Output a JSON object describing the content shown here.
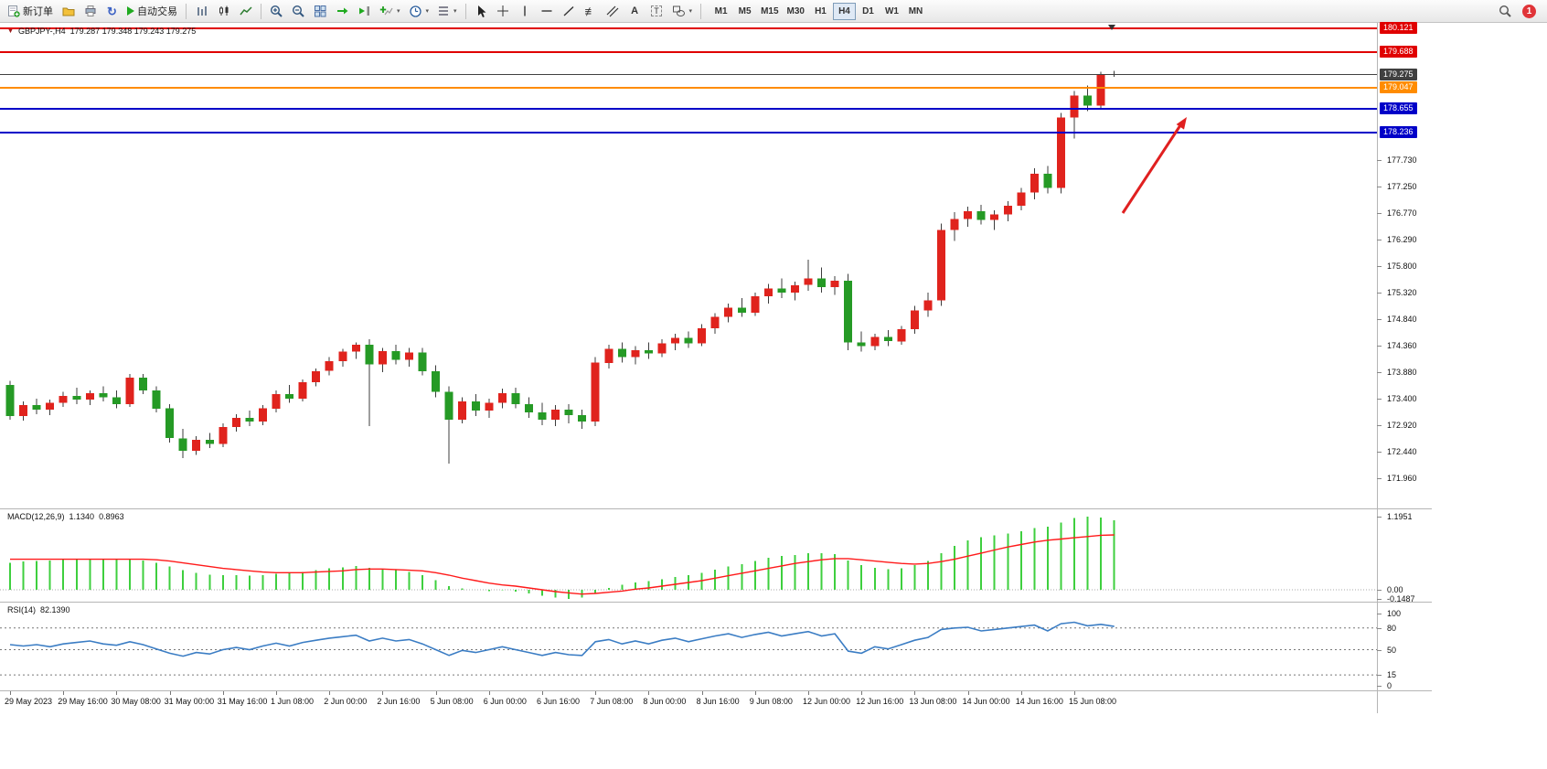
{
  "toolbar": {
    "new_order_label": "新订单",
    "auto_trading_label": "自动交易",
    "timeframes": [
      "M1",
      "M5",
      "M15",
      "M30",
      "H1",
      "H4",
      "D1",
      "W1",
      "MN"
    ],
    "active_timeframe": "H4",
    "notification_count": "1"
  },
  "chart": {
    "symbol_title": "GBPJPY-,H4",
    "ohlc_text": "179.287 179.348 179.243 179.275",
    "macd": {
      "title": "MACD(12,26,9)",
      "value_main": "1.1340",
      "value_signal": "0.8963"
    },
    "rsi": {
      "title": "RSI(14)",
      "value": "82.1390"
    }
  },
  "chart_data": {
    "type": "candlestick",
    "symbol": "GBPJPY",
    "timeframe": "H4",
    "title": "GBPJPY-,H4",
    "current_ohlc": {
      "open": 179.287,
      "high": 179.348,
      "low": 179.243,
      "close": 179.275
    },
    "ylim": [
      171.41,
      180.2
    ],
    "price_axis_labels": [
      "177.730",
      "177.250",
      "176.770",
      "176.290",
      "175.800",
      "175.320",
      "174.840",
      "174.360",
      "173.880",
      "173.400",
      "172.920",
      "172.440",
      "171.960"
    ],
    "x_labels": [
      "29 May 2023",
      "29 May 16:00",
      "30 May 08:00",
      "31 May 00:00",
      "31 May 16:00",
      "1 Jun 08:00",
      "2 Jun 00:00",
      "2 Jun 16:00",
      "5 Jun 08:00",
      "6 Jun 00:00",
      "6 Jun 16:00",
      "7 Jun 08:00",
      "8 Jun 00:00",
      "8 Jun 16:00",
      "9 Jun 08:00",
      "12 Jun 00:00",
      "12 Jun 16:00",
      "13 Jun 08:00",
      "14 Jun 00:00",
      "14 Jun 16:00",
      "15 Jun 08:00"
    ],
    "candles_per_label": 4,
    "ohlc": [
      [
        173.65,
        173.72,
        173.02,
        173.08
      ],
      [
        173.08,
        173.35,
        173.0,
        173.28
      ],
      [
        173.28,
        173.4,
        173.12,
        173.2
      ],
      [
        173.2,
        173.38,
        173.1,
        173.32
      ],
      [
        173.32,
        173.52,
        173.25,
        173.45
      ],
      [
        173.45,
        173.6,
        173.3,
        173.38
      ],
      [
        173.38,
        173.55,
        173.28,
        173.5
      ],
      [
        173.5,
        173.62,
        173.35,
        173.42
      ],
      [
        173.42,
        173.55,
        173.22,
        173.3
      ],
      [
        173.3,
        173.85,
        173.25,
        173.78
      ],
      [
        173.78,
        173.85,
        173.48,
        173.55
      ],
      [
        173.55,
        173.62,
        173.15,
        173.22
      ],
      [
        173.22,
        173.3,
        172.6,
        172.68
      ],
      [
        172.68,
        172.85,
        172.32,
        172.45
      ],
      [
        172.45,
        172.72,
        172.38,
        172.65
      ],
      [
        172.65,
        172.78,
        172.5,
        172.58
      ],
      [
        172.58,
        172.95,
        172.52,
        172.88
      ],
      [
        172.88,
        173.12,
        172.8,
        173.05
      ],
      [
        173.05,
        173.18,
        172.9,
        172.98
      ],
      [
        172.98,
        173.28,
        172.92,
        173.22
      ],
      [
        173.22,
        173.55,
        173.15,
        173.48
      ],
      [
        173.48,
        173.65,
        173.32,
        173.4
      ],
      [
        173.4,
        173.75,
        173.35,
        173.7
      ],
      [
        173.7,
        173.95,
        173.62,
        173.9
      ],
      [
        173.9,
        174.15,
        173.82,
        174.08
      ],
      [
        174.08,
        174.3,
        173.98,
        174.25
      ],
      [
        174.25,
        174.42,
        174.12,
        174.38
      ],
      [
        174.38,
        174.48,
        172.9,
        174.02
      ],
      [
        174.02,
        174.32,
        173.88,
        174.26
      ],
      [
        174.26,
        174.38,
        174.02,
        174.1
      ],
      [
        174.1,
        174.32,
        173.98,
        174.24
      ],
      [
        174.24,
        174.32,
        173.82,
        173.9
      ],
      [
        173.9,
        174.0,
        173.42,
        173.52
      ],
      [
        173.52,
        173.62,
        172.22,
        173.02
      ],
      [
        173.02,
        173.42,
        172.95,
        173.35
      ],
      [
        173.35,
        173.48,
        173.08,
        173.18
      ],
      [
        173.18,
        173.4,
        173.05,
        173.32
      ],
      [
        173.32,
        173.58,
        173.22,
        173.5
      ],
      [
        173.5,
        173.6,
        173.22,
        173.3
      ],
      [
        173.3,
        173.42,
        173.05,
        173.15
      ],
      [
        173.15,
        173.32,
        172.92,
        173.02
      ],
      [
        173.02,
        173.28,
        172.9,
        173.2
      ],
      [
        173.2,
        173.3,
        172.95,
        173.1
      ],
      [
        173.1,
        173.2,
        172.85,
        172.98
      ],
      [
        172.98,
        174.15,
        172.9,
        174.05
      ],
      [
        174.05,
        174.38,
        173.95,
        174.3
      ],
      [
        174.3,
        174.42,
        174.05,
        174.15
      ],
      [
        174.15,
        174.35,
        174.02,
        174.28
      ],
      [
        174.28,
        174.42,
        174.12,
        174.22
      ],
      [
        174.22,
        174.48,
        174.15,
        174.4
      ],
      [
        174.4,
        174.58,
        174.28,
        174.5
      ],
      [
        174.5,
        174.62,
        174.32,
        174.4
      ],
      [
        174.4,
        174.75,
        174.35,
        174.68
      ],
      [
        174.68,
        174.95,
        174.58,
        174.88
      ],
      [
        174.88,
        175.12,
        174.78,
        175.05
      ],
      [
        175.05,
        175.22,
        174.88,
        174.96
      ],
      [
        174.96,
        175.32,
        174.9,
        175.26
      ],
      [
        175.26,
        175.48,
        175.12,
        175.4
      ],
      [
        175.4,
        175.58,
        175.22,
        175.32
      ],
      [
        175.32,
        175.52,
        175.18,
        175.46
      ],
      [
        175.46,
        175.92,
        175.36,
        175.58
      ],
      [
        175.58,
        175.78,
        175.32,
        175.42
      ],
      [
        175.42,
        175.62,
        175.28,
        175.54
      ],
      [
        175.54,
        175.66,
        174.28,
        174.42
      ],
      [
        174.42,
        174.62,
        174.25,
        174.35
      ],
      [
        174.35,
        174.58,
        174.28,
        174.52
      ],
      [
        174.52,
        174.64,
        174.35,
        174.44
      ],
      [
        174.44,
        174.72,
        174.38,
        174.66
      ],
      [
        174.66,
        175.08,
        174.58,
        175.0
      ],
      [
        175.0,
        175.32,
        174.88,
        175.18
      ],
      [
        175.18,
        176.58,
        175.08,
        176.46
      ],
      [
        176.46,
        176.78,
        176.26,
        176.66
      ],
      [
        176.66,
        176.88,
        176.52,
        176.8
      ],
      [
        176.8,
        176.92,
        176.56,
        176.64
      ],
      [
        176.64,
        176.82,
        176.46,
        176.74
      ],
      [
        176.74,
        176.98,
        176.62,
        176.9
      ],
      [
        176.9,
        177.22,
        176.82,
        177.14
      ],
      [
        177.14,
        177.58,
        177.02,
        177.48
      ],
      [
        177.48,
        177.62,
        177.12,
        177.22
      ],
      [
        177.22,
        178.58,
        177.12,
        178.5
      ],
      [
        178.5,
        178.98,
        178.12,
        178.9
      ],
      [
        178.9,
        179.08,
        178.62,
        178.72
      ],
      [
        178.72,
        179.33,
        178.66,
        179.29
      ],
      [
        179.287,
        179.348,
        179.243,
        179.275
      ]
    ],
    "indicators": {
      "macd": {
        "params": "12,26,9",
        "current_main": 1.134,
        "current_signal": 0.8963,
        "scale_labels": [
          "1.1951",
          "0.00",
          "-0.1487"
        ],
        "ylim": [
          -0.179,
          1.315
        ],
        "histogram": [
          0.44,
          0.46,
          0.47,
          0.48,
          0.49,
          0.5,
          0.51,
          0.5,
          0.49,
          0.5,
          0.48,
          0.44,
          0.38,
          0.32,
          0.28,
          0.25,
          0.24,
          0.24,
          0.23,
          0.24,
          0.26,
          0.27,
          0.29,
          0.32,
          0.35,
          0.37,
          0.39,
          0.36,
          0.34,
          0.32,
          0.29,
          0.24,
          0.16,
          0.06,
          0.02,
          0.0,
          -0.02,
          -0.01,
          -0.03,
          -0.06,
          -0.1,
          -0.13,
          -0.1487,
          -0.13,
          -0.05,
          0.03,
          0.08,
          0.12,
          0.14,
          0.17,
          0.21,
          0.24,
          0.28,
          0.33,
          0.38,
          0.42,
          0.47,
          0.52,
          0.55,
          0.57,
          0.6,
          0.6,
          0.58,
          0.48,
          0.4,
          0.36,
          0.34,
          0.35,
          0.4,
          0.47,
          0.6,
          0.72,
          0.81,
          0.86,
          0.89,
          0.92,
          0.96,
          1.01,
          1.03,
          1.1,
          1.17,
          1.1951,
          1.18,
          1.134
        ],
        "signal": [
          0.5,
          0.5,
          0.5,
          0.5,
          0.5,
          0.5,
          0.5,
          0.5,
          0.5,
          0.5,
          0.5,
          0.49,
          0.47,
          0.44,
          0.41,
          0.38,
          0.35,
          0.33,
          0.31,
          0.29,
          0.28,
          0.28,
          0.28,
          0.29,
          0.3,
          0.31,
          0.33,
          0.34,
          0.34,
          0.33,
          0.32,
          0.31,
          0.28,
          0.24,
          0.19,
          0.15,
          0.11,
          0.08,
          0.06,
          0.03,
          0.0,
          -0.03,
          -0.05,
          -0.07,
          -0.06,
          -0.04,
          -0.02,
          0.01,
          0.03,
          0.06,
          0.09,
          0.12,
          0.15,
          0.19,
          0.23,
          0.27,
          0.31,
          0.35,
          0.39,
          0.43,
          0.46,
          0.49,
          0.51,
          0.51,
          0.49,
          0.47,
          0.45,
          0.43,
          0.42,
          0.43,
          0.46,
          0.5,
          0.55,
          0.6,
          0.65,
          0.7,
          0.74,
          0.78,
          0.81,
          0.83,
          0.85,
          0.87,
          0.89,
          0.8963
        ]
      },
      "rsi": {
        "period": 14,
        "current": 82.139,
        "scale_labels": [
          "100",
          "80",
          "50",
          "15",
          "0"
        ],
        "levels": [
          80,
          50,
          15
        ],
        "values": [
          57,
          55,
          57,
          54,
          58,
          60,
          62,
          58,
          56,
          61,
          57,
          51,
          45,
          41,
          46,
          44,
          50,
          53,
          50,
          55,
          59,
          55,
          60,
          63,
          66,
          68,
          70,
          62,
          66,
          62,
          64,
          58,
          50,
          42,
          49,
          46,
          50,
          54,
          50,
          46,
          42,
          46,
          43,
          42,
          61,
          64,
          58,
          62,
          58,
          63,
          66,
          61,
          65,
          69,
          72,
          67,
          71,
          74,
          69,
          72,
          75,
          69,
          72,
          48,
          45,
          54,
          51,
          57,
          63,
          67,
          78,
          80,
          81,
          76,
          78,
          80,
          82,
          84,
          76,
          86,
          88,
          83,
          85,
          82.139
        ]
      }
    },
    "horizontal_lines": [
      {
        "price": 180.121,
        "label": "180.121",
        "color_key": "line_red",
        "thickness": 2,
        "role": "resistance"
      },
      {
        "price": 179.688,
        "label": "179.688",
        "color_key": "line_red",
        "thickness": 2,
        "role": "resistance"
      },
      {
        "price": 179.275,
        "label": "179.275",
        "color_key": "bid_line",
        "thickness": 1,
        "role": "bid-price"
      },
      {
        "price": 179.047,
        "label": "179.047",
        "color_key": "line_orange",
        "thickness": 2,
        "role": "level"
      },
      {
        "price": 178.655,
        "label": "178.655",
        "color_key": "line_blue",
        "thickness": 2,
        "role": "support"
      },
      {
        "price": 178.236,
        "label": "178.236",
        "color_key": "line_blue",
        "thickness": 2,
        "role": "support"
      }
    ],
    "annotation_arrow": {
      "direction": "up-right",
      "color_key": "arrow"
    },
    "colors": {
      "candle_up": "#e0231d",
      "candle_down": "#259a25",
      "wick": "#3c3c3c",
      "macd_histogram": "#3ecf3e",
      "macd_signal": "#ff1a1a",
      "rsi_line": "#3b7dc4",
      "line_red": "#e00000",
      "line_orange": "#ff8c00",
      "line_blue": "#0000c8",
      "bid_line": "#404040",
      "arrow": "#e02020"
    }
  }
}
